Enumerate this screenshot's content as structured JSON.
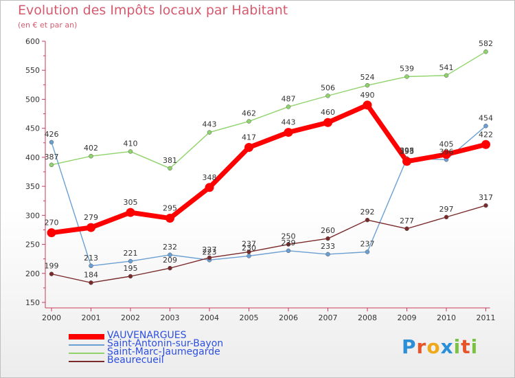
{
  "title": "Evolution des Impôts locaux par Habitant",
  "subtitle": "(en € et par an)",
  "logo": {
    "text": "Proxiti",
    "letters": [
      "P",
      "r",
      "o",
      "x",
      "i",
      "t",
      "i"
    ],
    "colors": [
      "#2b8fd8",
      "#e8542a",
      "#f0a81b",
      "#2b8fd8",
      "#7cc242",
      "#e8542a",
      "#7cc242"
    ]
  },
  "chart_data": {
    "type": "line",
    "title": "Evolution des Impôts locaux par Habitant",
    "subtitle": "(en € et par an)",
    "xlabel": "",
    "ylabel": "",
    "ylim": [
      150,
      600
    ],
    "yticks": [
      150,
      200,
      250,
      300,
      350,
      400,
      450,
      500,
      550,
      600
    ],
    "grid": false,
    "legend_position": "bottom-left",
    "categories": [
      "2000",
      "2001",
      "2002",
      "2003",
      "2004",
      "2005",
      "2006",
      "2007",
      "2008",
      "2009",
      "2010",
      "2011"
    ],
    "series": [
      {
        "name": "VAUVENARGUES",
        "color": "#ff0000",
        "width": 7,
        "values": [
          270,
          279,
          305,
          295,
          348,
          417,
          443,
          460,
          490,
          393,
          405,
          422
        ]
      },
      {
        "name": "Saint-Antonin-sur-Bayon",
        "color": "#6a9fd4",
        "width": 1.4,
        "values": [
          426,
          213,
          221,
          232,
          223,
          230,
          239,
          233,
          237,
          398,
          396,
          454
        ]
      },
      {
        "name": "Saint-Marc-Jaumegarde",
        "color": "#8fd36a",
        "width": 1.4,
        "values": [
          387,
          402,
          410,
          381,
          443,
          462,
          487,
          506,
          524,
          539,
          541,
          582
        ]
      },
      {
        "name": "Beaurecueil",
        "color": "#7a2a2a",
        "width": 1.4,
        "values": [
          199,
          184,
          195,
          209,
          227,
          237,
          250,
          260,
          292,
          277,
          297,
          317
        ]
      }
    ]
  }
}
